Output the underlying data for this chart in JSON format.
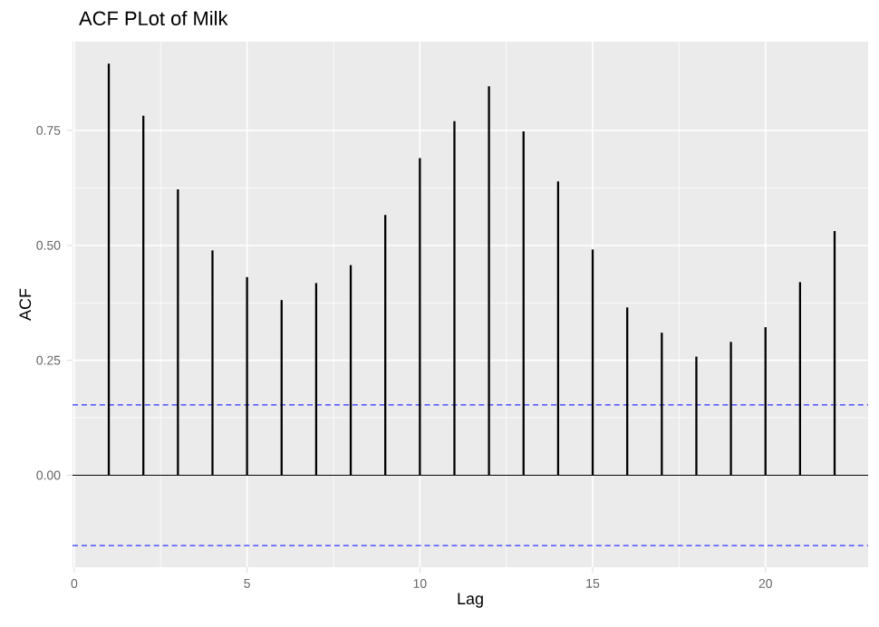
{
  "chart_data": {
    "type": "bar",
    "title": "ACF PLot of Milk",
    "xlabel": "Lag",
    "ylabel": "ACF",
    "x": [
      1,
      2,
      3,
      4,
      5,
      6,
      7,
      8,
      9,
      10,
      11,
      12,
      13,
      14,
      15,
      16,
      17,
      18,
      19,
      20,
      21,
      22
    ],
    "values": [
      0.895,
      0.782,
      0.622,
      0.489,
      0.431,
      0.381,
      0.418,
      0.457,
      0.566,
      0.69,
      0.77,
      0.846,
      0.748,
      0.639,
      0.491,
      0.365,
      0.31,
      0.258,
      0.29,
      0.322,
      0.42,
      0.531
    ],
    "color": "#000000",
    "xlim": [
      -0.05,
      22.97
    ],
    "ylim": [
      -0.2,
      0.943
    ],
    "xticks": [
      0,
      5,
      10,
      15,
      20
    ],
    "yticks": [
      {
        "value": 0,
        "label": "0.00"
      },
      {
        "value": 0.25,
        "label": "0.25"
      },
      {
        "value": 0.5,
        "label": "0.50"
      },
      {
        "value": 0.75,
        "label": "0.75"
      }
    ],
    "ref_lines": [
      {
        "axis": "y",
        "value": 0,
        "color": "#000000",
        "line_style": "solid"
      },
      {
        "axis": "y",
        "value": 0.153,
        "color": "#3333ff",
        "line_style": "dashed"
      },
      {
        "axis": "y",
        "value": -0.153,
        "color": "#3333ff",
        "line_style": "dashed"
      }
    ],
    "grid": true
  }
}
